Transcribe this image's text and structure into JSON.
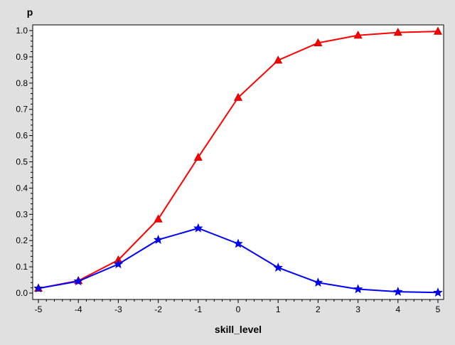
{
  "chart_data": {
    "type": "line",
    "xlabel": "skill_level",
    "ylabel": "p",
    "xlim": [
      -5,
      5
    ],
    "ylim": [
      0,
      1
    ],
    "x_ticks": [
      -5,
      -4,
      -3,
      -2,
      -1,
      0,
      1,
      2,
      3,
      4,
      5
    ],
    "y_ticks": [
      "0.0",
      "0.1",
      "0.2",
      "0.3",
      "0.4",
      "0.5",
      "0.6",
      "0.7",
      "0.8",
      "0.9",
      "1.0"
    ],
    "grid": false,
    "legend": "none",
    "x": [
      -5,
      -4,
      -3,
      -2,
      -1,
      0,
      1,
      2,
      3,
      4,
      5
    ],
    "series": [
      {
        "color": "#ff0000",
        "marker_color": "#cc0000",
        "marker": "triangle",
        "values": [
          0.018,
          0.047,
          0.126,
          0.282,
          0.517,
          0.745,
          0.887,
          0.953,
          0.982,
          0.993,
          0.997
        ]
      },
      {
        "color": "#0000ff",
        "marker_color": "#0000cc",
        "marker": "star",
        "values": [
          0.018,
          0.045,
          0.11,
          0.203,
          0.247,
          0.188,
          0.097,
          0.04,
          0.015,
          0.005,
          0.002
        ]
      }
    ]
  }
}
